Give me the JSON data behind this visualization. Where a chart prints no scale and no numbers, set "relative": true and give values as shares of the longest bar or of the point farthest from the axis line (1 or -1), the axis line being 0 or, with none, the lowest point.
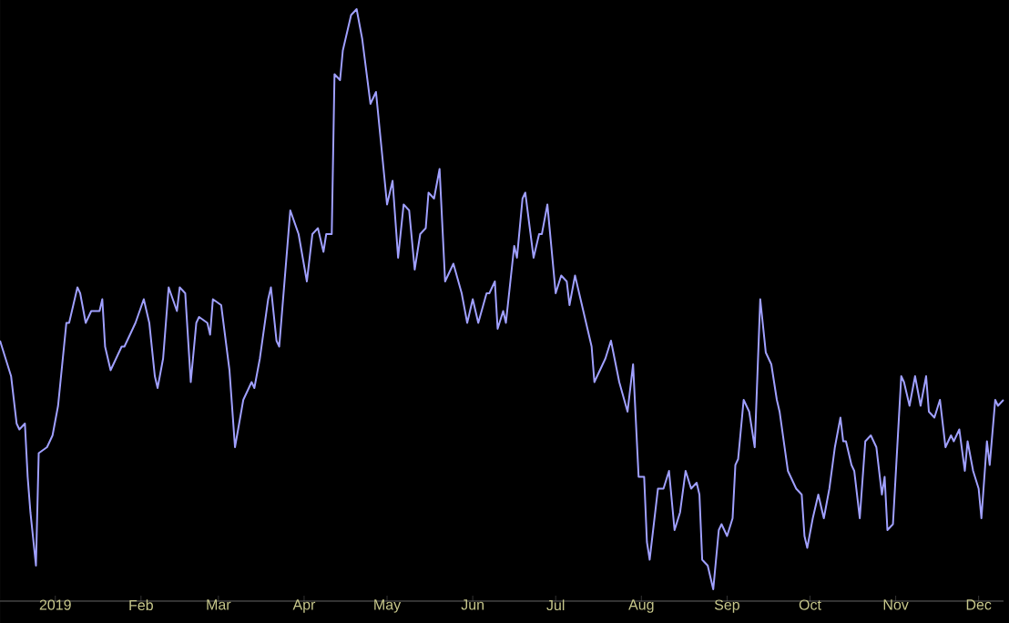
{
  "chart_data": {
    "type": "line",
    "relative": true,
    "x": [
      "2018-12-12",
      "2018-12-14",
      "2018-12-16",
      "2018-12-18",
      "2018-12-19",
      "2018-12-21",
      "2018-12-22",
      "2018-12-23",
      "2018-12-25",
      "2018-12-26",
      "2018-12-29",
      "2018-12-31",
      "2019-01-02",
      "2019-01-05",
      "2019-01-06",
      "2019-01-09",
      "2019-01-10",
      "2019-01-12",
      "2019-01-14",
      "2019-01-15",
      "2019-01-17",
      "2019-01-18",
      "2019-01-19",
      "2019-01-21",
      "2019-01-23",
      "2019-01-25",
      "2019-01-26",
      "2019-01-28",
      "2019-01-30",
      "2019-02-02",
      "2019-02-04",
      "2019-02-06",
      "2019-02-07",
      "2019-02-09",
      "2019-02-11",
      "2019-02-14",
      "2019-02-15",
      "2019-02-17",
      "2019-02-19",
      "2019-02-21",
      "2019-02-22",
      "2019-02-25",
      "2019-02-26",
      "2019-02-27",
      "2019-03-02",
      "2019-03-05",
      "2019-03-07",
      "2019-03-10",
      "2019-03-13",
      "2019-03-14",
      "2019-03-16",
      "2019-03-19",
      "2019-03-20",
      "2019-03-22",
      "2019-03-23",
      "2019-03-27",
      "2019-03-30",
      "2019-04-02",
      "2019-04-04",
      "2019-04-06",
      "2019-04-08",
      "2019-04-09",
      "2019-04-11",
      "2019-04-12",
      "2019-04-14",
      "2019-04-15",
      "2019-04-18",
      "2019-04-20",
      "2019-04-22",
      "2019-04-25",
      "2019-04-27",
      "2019-05-01",
      "2019-05-03",
      "2019-05-05",
      "2019-05-07",
      "2019-05-09",
      "2019-05-11",
      "2019-05-13",
      "2019-05-15",
      "2019-05-16",
      "2019-05-18",
      "2019-05-20",
      "2019-05-22",
      "2019-05-25",
      "2019-05-28",
      "2019-05-30",
      "2019-06-01",
      "2019-06-03",
      "2019-06-06",
      "2019-06-07",
      "2019-06-09",
      "2019-06-10",
      "2019-06-12",
      "2019-06-13",
      "2019-06-16",
      "2019-06-17",
      "2019-06-19",
      "2019-06-20",
      "2019-06-23",
      "2019-06-25",
      "2019-06-26",
      "2019-06-28",
      "2019-07-01",
      "2019-07-03",
      "2019-07-05",
      "2019-07-06",
      "2019-07-08",
      "2019-07-10",
      "2019-07-13",
      "2019-07-14",
      "2019-07-15",
      "2019-07-18",
      "2019-07-19",
      "2019-07-21",
      "2019-07-24",
      "2019-07-27",
      "2019-07-29",
      "2019-07-31",
      "2019-08-02",
      "2019-08-03",
      "2019-08-04",
      "2019-08-07",
      "2019-08-09",
      "2019-08-11",
      "2019-08-13",
      "2019-08-15",
      "2019-08-17",
      "2019-08-19",
      "2019-08-21",
      "2019-08-22",
      "2019-08-23",
      "2019-08-25",
      "2019-08-27",
      "2019-08-29",
      "2019-08-30",
      "2019-09-01",
      "2019-09-03",
      "2019-09-04",
      "2019-09-05",
      "2019-09-07",
      "2019-09-09",
      "2019-09-11",
      "2019-09-13",
      "2019-09-15",
      "2019-09-17",
      "2019-09-19",
      "2019-09-20",
      "2019-09-23",
      "2019-09-26",
      "2019-09-28",
      "2019-09-29",
      "2019-09-30",
      "2019-10-02",
      "2019-10-04",
      "2019-10-06",
      "2019-10-08",
      "2019-10-10",
      "2019-10-12",
      "2019-10-13",
      "2019-10-14",
      "2019-10-16",
      "2019-10-17",
      "2019-10-19",
      "2019-10-21",
      "2019-10-23",
      "2019-10-25",
      "2019-10-27",
      "2019-10-28",
      "2019-10-29",
      "2019-10-31",
      "2019-11-03",
      "2019-11-04",
      "2019-11-06",
      "2019-11-08",
      "2019-11-10",
      "2019-11-12",
      "2019-11-13",
      "2019-11-15",
      "2019-11-17",
      "2019-11-19",
      "2019-11-21",
      "2019-11-22",
      "2019-11-24",
      "2019-11-26",
      "2019-11-27",
      "2019-11-29",
      "2019-12-01",
      "2019-12-02",
      "2019-12-04",
      "2019-12-05",
      "2019-12-07",
      "2019-12-08",
      "2019-12-10"
    ],
    "series": [
      {
        "color": "#a0a0ff",
        "values": [
          0.44,
          0.41,
          0.38,
          0.3,
          0.29,
          0.3,
          0.21,
          0.15,
          0.06,
          0.25,
          0.26,
          0.28,
          0.33,
          0.47,
          0.47,
          0.53,
          0.52,
          0.47,
          0.49,
          0.49,
          0.49,
          0.51,
          0.43,
          0.39,
          0.41,
          0.43,
          0.43,
          0.45,
          0.47,
          0.51,
          0.47,
          0.38,
          0.36,
          0.41,
          0.53,
          0.49,
          0.53,
          0.52,
          0.37,
          0.47,
          0.48,
          0.47,
          0.45,
          0.51,
          0.5,
          0.39,
          0.26,
          0.34,
          0.37,
          0.36,
          0.41,
          0.51,
          0.53,
          0.44,
          0.43,
          0.66,
          0.62,
          0.54,
          0.62,
          0.63,
          0.59,
          0.62,
          0.62,
          0.89,
          0.88,
          0.93,
          0.99,
          1,
          0.95,
          0.84,
          0.86,
          0.67,
          0.71,
          0.58,
          0.67,
          0.66,
          0.56,
          0.62,
          0.63,
          0.69,
          0.68,
          0.73,
          0.54,
          0.57,
          0.52,
          0.47,
          0.51,
          0.47,
          0.52,
          0.52,
          0.54,
          0.46,
          0.49,
          0.47,
          0.6,
          0.58,
          0.68,
          0.69,
          0.58,
          0.62,
          0.62,
          0.67,
          0.52,
          0.55,
          0.54,
          0.5,
          0.55,
          0.51,
          0.45,
          0.43,
          0.37,
          0.4,
          0.41,
          0.44,
          0.37,
          0.32,
          0.4,
          0.21,
          0.21,
          0.1,
          0.07,
          0.19,
          0.19,
          0.22,
          0.12,
          0.15,
          0.22,
          0.19,
          0.2,
          0.18,
          0.07,
          0.06,
          0.02,
          0.12,
          0.13,
          0.11,
          0.14,
          0.23,
          0.24,
          0.34,
          0.32,
          0.26,
          0.51,
          0.42,
          0.4,
          0.34,
          0.32,
          0.22,
          0.19,
          0.18,
          0.11,
          0.09,
          0.14,
          0.18,
          0.14,
          0.19,
          0.26,
          0.31,
          0.27,
          0.27,
          0.23,
          0.22,
          0.14,
          0.27,
          0.28,
          0.26,
          0.18,
          0.21,
          0.12,
          0.13,
          0.38,
          0.37,
          0.33,
          0.38,
          0.33,
          0.38,
          0.32,
          0.31,
          0.34,
          0.26,
          0.28,
          0.27,
          0.29,
          0.22,
          0.27,
          0.22,
          0.19,
          0.14,
          0.27,
          0.23,
          0.34,
          0.33,
          0.34
        ]
      }
    ],
    "xlim": [
      "2018-12-12",
      "2019-12-10"
    ],
    "xticks": [
      {
        "value": "2019-01-01",
        "label": "2019"
      },
      {
        "value": "2019-02-01",
        "label": "Feb"
      },
      {
        "value": "2019-03-01",
        "label": "Mar"
      },
      {
        "value": "2019-04-01",
        "label": "Apr"
      },
      {
        "value": "2019-05-01",
        "label": "May"
      },
      {
        "value": "2019-06-01",
        "label": "Jun"
      },
      {
        "value": "2019-07-01",
        "label": "Jul"
      },
      {
        "value": "2019-08-01",
        "label": "Aug"
      },
      {
        "value": "2019-09-01",
        "label": "Sep"
      },
      {
        "value": "2019-10-01",
        "label": "Oct"
      },
      {
        "value": "2019-11-01",
        "label": "Nov"
      },
      {
        "value": "2019-12-01",
        "label": "Dec"
      }
    ]
  }
}
